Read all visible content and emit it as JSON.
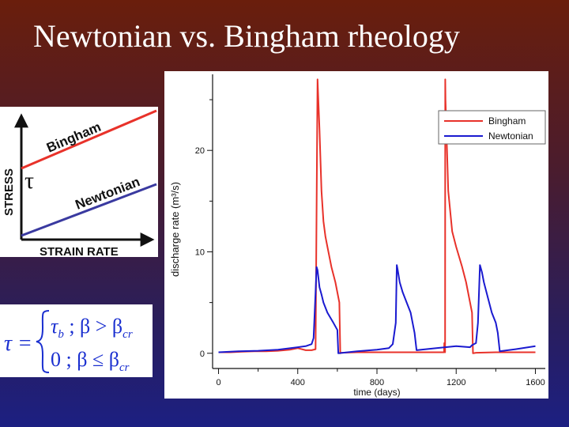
{
  "slide": {
    "title": "Newtonian vs. Bingham rheology"
  },
  "rheology_diagram": {
    "y_axis_label": "STRESS",
    "x_axis_label": "STRAIN RATE",
    "tau_symbol": "τ",
    "bingham_label": "Bingham",
    "newtonian_label": "Newtonian",
    "bingham_color": "#e8322a",
    "newtonian_color": "#3a3aa0"
  },
  "equation": {
    "lhs": "τ =",
    "case1_expr": "τ",
    "case1_sub": "b",
    "case1_cond": " ; β > β",
    "case1_cond_sub": "cr",
    "case2_expr": "0",
    "case2_cond": " ; β ≤ β",
    "case2_cond_sub": "cr",
    "color": "#1a2fd0"
  },
  "chart_data": {
    "type": "line",
    "xlabel": "time (days)",
    "ylabel": "discharge rate (m³/s)",
    "xlim": [
      -30,
      1650
    ],
    "ylim": [
      -1.5,
      27.5
    ],
    "xticks": [
      0,
      400,
      800,
      1200,
      1600
    ],
    "yticks": [
      0,
      10,
      20
    ],
    "grid": false,
    "legend_position": "top-right",
    "series": [
      {
        "name": "Bingham",
        "color": "#e8322a",
        "x": [
          0,
          60,
          120,
          180,
          240,
          300,
          360,
          400,
          440,
          470,
          490,
          500,
          510,
          520,
          530,
          540,
          550,
          570,
          590,
          610,
          615,
          620,
          700,
          800,
          900,
          1000,
          1100,
          1139,
          1140,
          1141,
          1144,
          1145,
          1146,
          1160,
          1180,
          1200,
          1215,
          1230,
          1250,
          1270,
          1280,
          1285,
          1300,
          1400,
          1500,
          1600
        ],
        "y": [
          0.1,
          0.1,
          0.15,
          0.2,
          0.2,
          0.25,
          0.35,
          0.5,
          0.3,
          0.3,
          0.4,
          27.0,
          22.0,
          16.0,
          13.0,
          11.5,
          10.5,
          8.5,
          7.0,
          5.0,
          0.0,
          0.05,
          0.1,
          0.1,
          0.1,
          0.1,
          0.1,
          0.1,
          1.0,
          1.0,
          0.1,
          27.0,
          25.0,
          16.0,
          12.0,
          10.5,
          9.5,
          8.5,
          7.0,
          5.0,
          4.0,
          0.0,
          0.05,
          0.1,
          0.1,
          0.1
        ]
      },
      {
        "name": "Newtonian",
        "color": "#1a1ad0",
        "x": [
          0,
          100,
          200,
          300,
          400,
          440,
          470,
          480,
          490,
          495,
          500,
          510,
          520,
          530,
          550,
          580,
          600,
          605,
          700,
          800,
          860,
          880,
          895,
          900,
          905,
          915,
          930,
          950,
          970,
          980,
          990,
          1000,
          1100,
          1200,
          1270,
          1280,
          1300,
          1310,
          1320,
          1330,
          1340,
          1360,
          1380,
          1400,
          1410,
          1420,
          1500,
          1600
        ],
        "y": [
          0.1,
          0.2,
          0.25,
          0.35,
          0.6,
          0.7,
          0.9,
          1.5,
          6.0,
          8.5,
          8.2,
          6.5,
          5.8,
          5.0,
          4.0,
          3.0,
          2.3,
          0.0,
          0.2,
          0.35,
          0.5,
          0.9,
          3.0,
          8.7,
          8.2,
          7.0,
          6.0,
          5.0,
          4.0,
          3.0,
          2.0,
          0.3,
          0.5,
          0.7,
          0.6,
          0.8,
          1.0,
          3.0,
          8.7,
          8.0,
          7.0,
          5.5,
          4.0,
          3.0,
          2.0,
          0.2,
          0.4,
          0.7
        ]
      }
    ]
  }
}
